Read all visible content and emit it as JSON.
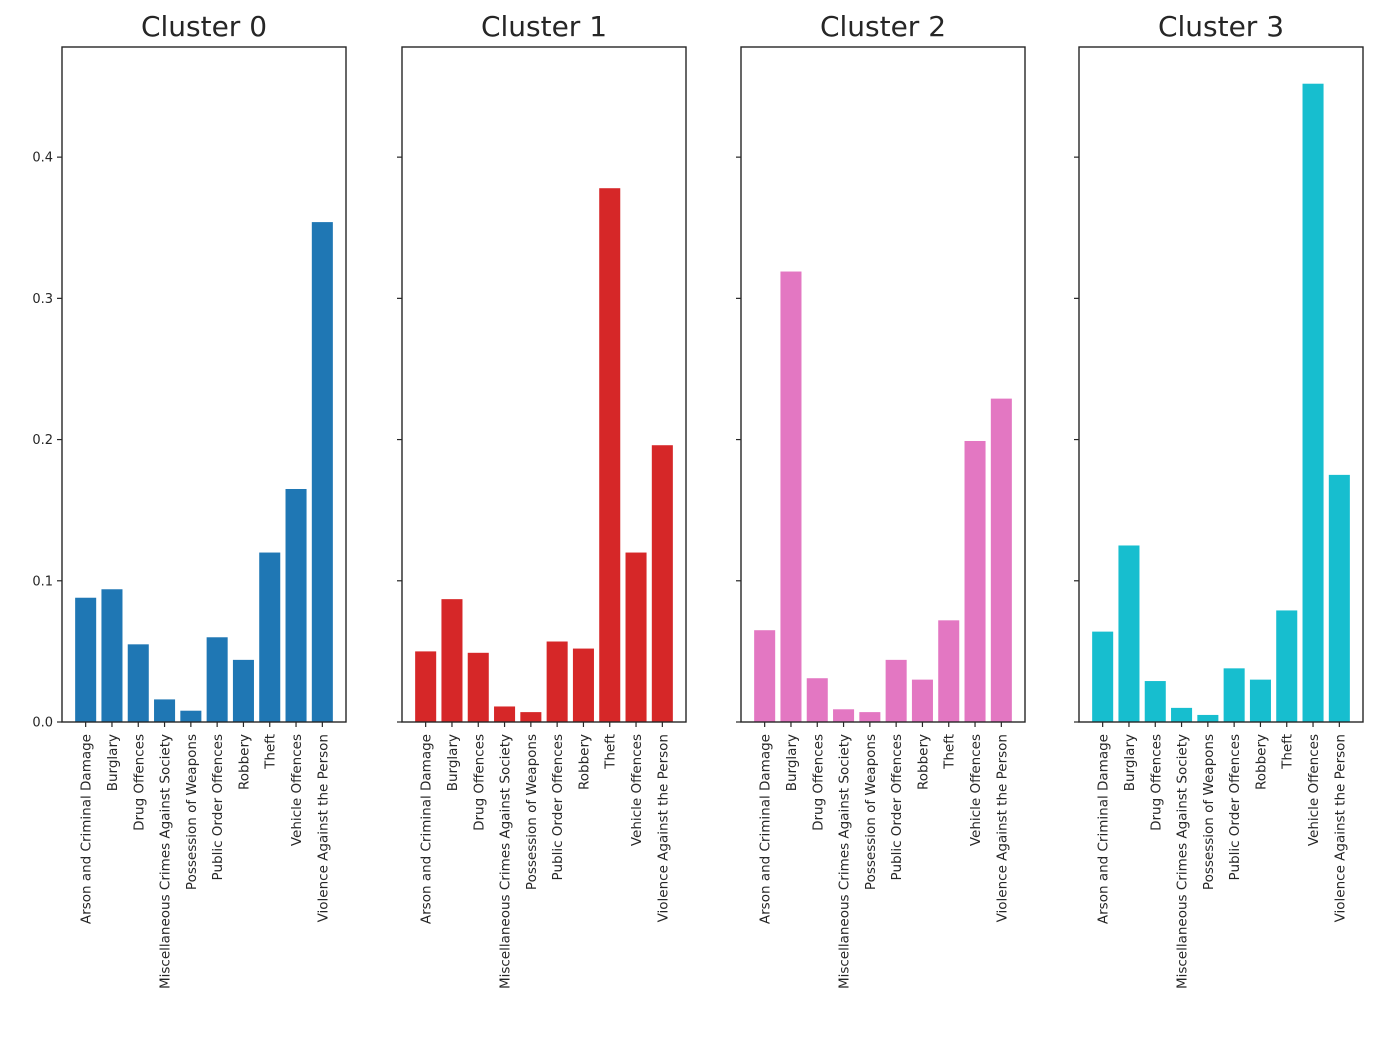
{
  "chart_data": [
    {
      "type": "bar",
      "title": "Cluster 0",
      "color": "#1f77b4",
      "categories": [
        "Arson and Criminal Damage",
        "Burglary",
        "Drug Offences",
        "Miscellaneous Crimes Against Society",
        "Possession of Weapons",
        "Public Order Offences",
        "Robbery",
        "Theft",
        "Vehicle Offences",
        "Violence Against the Person"
      ],
      "values": [
        0.088,
        0.094,
        0.055,
        0.016,
        0.008,
        0.06,
        0.044,
        0.12,
        0.165,
        0.354
      ],
      "ylim": [
        0,
        0.478
      ],
      "yticks": [
        "0.0",
        "0.1",
        "0.2",
        "0.3",
        "0.4"
      ],
      "xlabel": "",
      "ylabel": ""
    },
    {
      "type": "bar",
      "title": "Cluster 1",
      "color": "#d62728",
      "categories": [
        "Arson and Criminal Damage",
        "Burglary",
        "Drug Offences",
        "Miscellaneous Crimes Against Society",
        "Possession of Weapons",
        "Public Order Offences",
        "Robbery",
        "Theft",
        "Vehicle Offences",
        "Violence Against the Person"
      ],
      "values": [
        0.05,
        0.087,
        0.049,
        0.011,
        0.007,
        0.057,
        0.052,
        0.378,
        0.12,
        0.196
      ],
      "ylim": [
        0,
        0.478
      ],
      "xlabel": "",
      "ylabel": ""
    },
    {
      "type": "bar",
      "title": "Cluster 2",
      "color": "#e377c2",
      "categories": [
        "Arson and Criminal Damage",
        "Burglary",
        "Drug Offences",
        "Miscellaneous Crimes Against Society",
        "Possession of Weapons",
        "Public Order Offences",
        "Robbery",
        "Theft",
        "Vehicle Offences",
        "Violence Against the Person"
      ],
      "values": [
        0.065,
        0.319,
        0.031,
        0.009,
        0.007,
        0.044,
        0.03,
        0.072,
        0.199,
        0.229
      ],
      "ylim": [
        0,
        0.478
      ],
      "xlabel": "",
      "ylabel": ""
    },
    {
      "type": "bar",
      "title": "Cluster 3",
      "color": "#17becf",
      "categories": [
        "Arson and Criminal Damage",
        "Burglary",
        "Drug Offences",
        "Miscellaneous Crimes Against Society",
        "Possession of Weapons",
        "Public Order Offences",
        "Robbery",
        "Theft",
        "Vehicle Offences",
        "Violence Against the Person"
      ],
      "values": [
        0.064,
        0.125,
        0.029,
        0.01,
        0.005,
        0.038,
        0.03,
        0.079,
        0.452,
        0.175
      ],
      "ylim": [
        0,
        0.478
      ],
      "xlabel": "",
      "ylabel": ""
    }
  ]
}
